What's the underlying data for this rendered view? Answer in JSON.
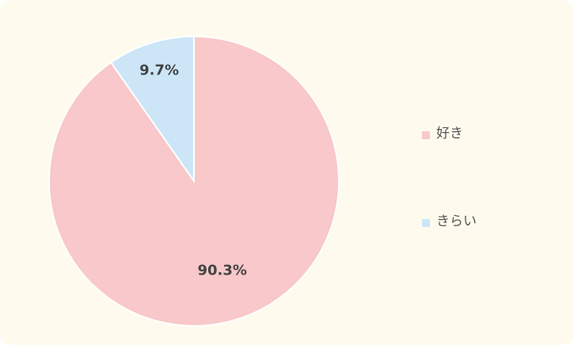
{
  "chart_data": {
    "type": "pie",
    "categories": [
      "好き",
      "きらい"
    ],
    "values": [
      90.3,
      9.7
    ],
    "value_labels": [
      "90.3%",
      "9.7%"
    ],
    "colors": [
      "#f8c8ca",
      "#cce6f7"
    ],
    "legend": "right"
  }
}
